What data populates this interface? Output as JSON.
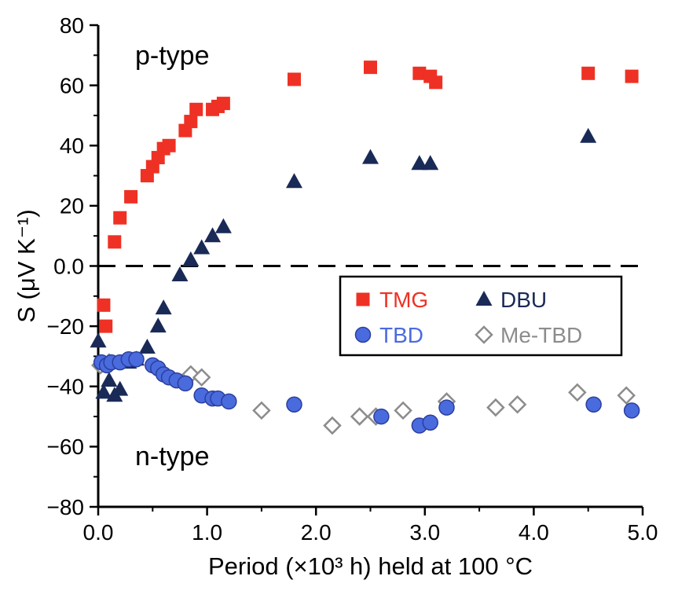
{
  "chart_data": {
    "type": "scatter",
    "title": "",
    "xlabel": "Period (×10³ h) held at 100 °C",
    "ylabel": "S (μV K⁻¹)",
    "xlim": [
      0,
      5
    ],
    "ylim": [
      -80,
      80
    ],
    "x_ticks": [
      0,
      1,
      2,
      3,
      4,
      5
    ],
    "x_tick_labels": [
      "0.0",
      "1.0",
      "2.0",
      "3.0",
      "4.0",
      "5.0"
    ],
    "x_minor_step": 0.5,
    "y_ticks": [
      -80,
      -60,
      -40,
      -20,
      0,
      20,
      40,
      60,
      80
    ],
    "y_tick_labels": [
      "−80",
      "−60",
      "−40",
      "−20",
      "0.0",
      "20",
      "40",
      "60",
      "80"
    ],
    "y_minor_step": 10,
    "grid": false,
    "axis_color": "#000000",
    "zero_line": {
      "y": 0,
      "style": "dashed",
      "color": "#000000"
    },
    "annotations": {
      "p_type": "p-type",
      "n_type": "n-type"
    },
    "legend": {
      "position": "center-right",
      "border_color": "#000000",
      "columns": 2,
      "items": [
        "TMG",
        "DBU",
        "TBD",
        "Me-TBD"
      ]
    },
    "z_order": [
      "TMG",
      "DBU",
      "Me-TBD",
      "TBD"
    ],
    "series": [
      {
        "name": "TMG",
        "marker": "square",
        "color": "#ee3124",
        "points": [
          [
            0.05,
            -13
          ],
          [
            0.07,
            -20
          ],
          [
            0.15,
            8
          ],
          [
            0.2,
            16
          ],
          [
            0.3,
            23
          ],
          [
            0.45,
            30
          ],
          [
            0.5,
            33
          ],
          [
            0.55,
            36
          ],
          [
            0.6,
            39
          ],
          [
            0.65,
            40
          ],
          [
            0.8,
            45
          ],
          [
            0.85,
            48
          ],
          [
            0.9,
            52
          ],
          [
            1.05,
            52
          ],
          [
            1.1,
            53
          ],
          [
            1.15,
            54
          ],
          [
            1.8,
            62
          ],
          [
            2.5,
            66
          ],
          [
            2.95,
            64
          ],
          [
            3.05,
            63
          ],
          [
            3.1,
            61
          ],
          [
            4.5,
            64
          ],
          [
            4.9,
            63
          ]
        ]
      },
      {
        "name": "DBU",
        "marker": "triangle",
        "color": "#1a2a57",
        "points": [
          [
            0.0,
            -25
          ],
          [
            0.05,
            -42
          ],
          [
            0.1,
            -38
          ],
          [
            0.15,
            -43
          ],
          [
            0.2,
            -41
          ],
          [
            0.28,
            -32
          ],
          [
            0.35,
            -31
          ],
          [
            0.45,
            -27
          ],
          [
            0.55,
            -20
          ],
          [
            0.6,
            -14
          ],
          [
            0.75,
            -3
          ],
          [
            0.85,
            2
          ],
          [
            0.95,
            6
          ],
          [
            1.05,
            10
          ],
          [
            1.15,
            13
          ],
          [
            1.8,
            28
          ],
          [
            2.5,
            36
          ],
          [
            2.95,
            34
          ],
          [
            3.05,
            34
          ],
          [
            4.5,
            43
          ]
        ]
      },
      {
        "name": "TBD",
        "marker": "circle",
        "color": "#4a6bde",
        "edge": "#2b3f9e",
        "points": [
          [
            0.03,
            -32
          ],
          [
            0.08,
            -33
          ],
          [
            0.12,
            -32
          ],
          [
            0.2,
            -32
          ],
          [
            0.28,
            -31
          ],
          [
            0.35,
            -31
          ],
          [
            0.5,
            -33
          ],
          [
            0.55,
            -34
          ],
          [
            0.6,
            -36
          ],
          [
            0.65,
            -37
          ],
          [
            0.72,
            -38
          ],
          [
            0.8,
            -39
          ],
          [
            0.95,
            -43
          ],
          [
            1.05,
            -44
          ],
          [
            1.1,
            -44
          ],
          [
            1.2,
            -45
          ],
          [
            1.8,
            -46
          ],
          [
            2.6,
            -50
          ],
          [
            2.95,
            -53
          ],
          [
            3.05,
            -52
          ],
          [
            3.2,
            -47
          ],
          [
            4.55,
            -46
          ],
          [
            4.9,
            -48
          ]
        ]
      },
      {
        "name": "Me-TBD",
        "marker": "diamond-open",
        "color": "#8c8c8c",
        "points": [
          [
            0.02,
            -33
          ],
          [
            0.1,
            -32
          ],
          [
            0.85,
            -36
          ],
          [
            0.95,
            -37
          ],
          [
            1.5,
            -48
          ],
          [
            2.15,
            -53
          ],
          [
            2.4,
            -50
          ],
          [
            2.55,
            -50
          ],
          [
            2.8,
            -48
          ],
          [
            3.2,
            -45
          ],
          [
            3.65,
            -47
          ],
          [
            3.85,
            -46
          ],
          [
            4.4,
            -42
          ],
          [
            4.85,
            -43
          ]
        ]
      }
    ]
  }
}
